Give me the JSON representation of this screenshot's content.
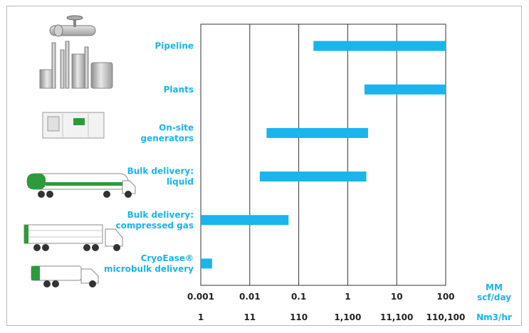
{
  "colors": {
    "bar": "#19b5ec",
    "label": "#19b5ec",
    "axis_text": "#222222",
    "grid": "#333333"
  },
  "chart_data": {
    "type": "bar",
    "orientation": "horizontal",
    "scale": "log",
    "categories": [
      {
        "label": [
          "Pipeline"
        ],
        "icon": "pipeline-icon"
      },
      {
        "label": [
          "Plants"
        ],
        "icon": "plant-icon"
      },
      {
        "label": [
          "On-site",
          "generators"
        ],
        "icon": "generator-icon"
      },
      {
        "label": [
          "Bulk delivery:",
          "liquid"
        ],
        "icon": "liquid-tanker-truck-icon"
      },
      {
        "label": [
          "Bulk delivery:",
          "compressed gas"
        ],
        "icon": "compressed-gas-truck-icon"
      },
      {
        "label": [
          "CryoEase®",
          "microbulk delivery"
        ],
        "icon": "microbulk-truck-icon"
      }
    ],
    "ranges": [
      [
        0.2,
        100
      ],
      [
        2.2,
        100
      ],
      [
        0.022,
        2.6
      ],
      [
        0.016,
        2.4
      ],
      [
        0.001,
        0.062
      ],
      [
        0.001,
        0.0017
      ]
    ],
    "xlim": [
      0.001,
      100
    ],
    "xticks": [
      "0.001",
      "0.01",
      "0.1",
      "1",
      "10",
      "100"
    ],
    "xticks_secondary": [
      "1",
      "11",
      "110",
      "1,100",
      "11,100",
      "110,100"
    ],
    "unit_primary": [
      "MM",
      "scf/day"
    ],
    "unit_secondary": "Nm3/hr",
    "grid": "vertical lines at each decade"
  }
}
